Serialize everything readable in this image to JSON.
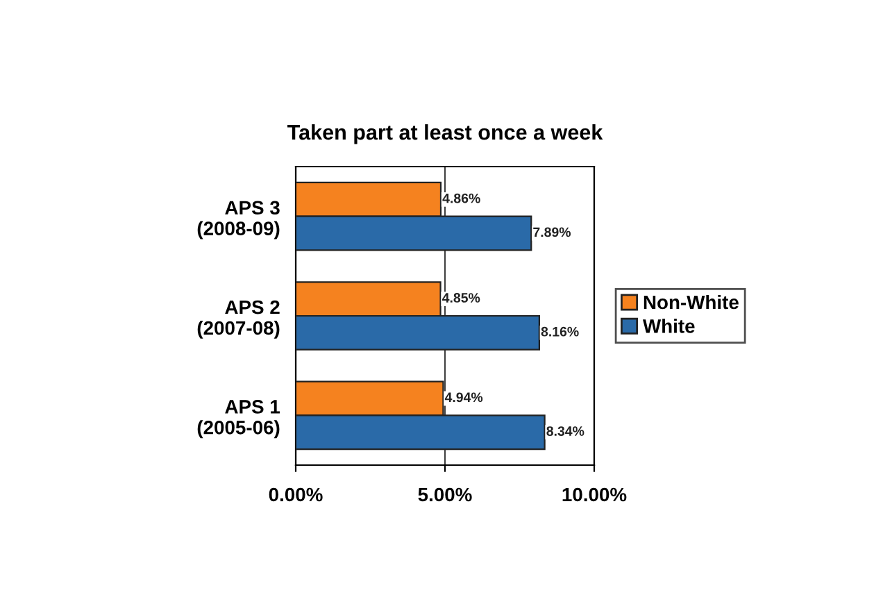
{
  "chart_data": {
    "type": "bar",
    "orientation": "horizontal",
    "title": "Taken part at least once a week",
    "categories": [
      "APS 3\n(2008-09)",
      "APS 2\n(2007-08)",
      "APS 1\n(2005-06)"
    ],
    "series": [
      {
        "name": "Non-White",
        "color": "#f5821f",
        "values": [
          4.86,
          4.85,
          4.94
        ],
        "value_labels": [
          "4.86%",
          "4.85%",
          "4.94%"
        ]
      },
      {
        "name": "White",
        "color": "#2a6aa8",
        "values": [
          7.89,
          8.16,
          8.34
        ],
        "value_labels": [
          "7.89%",
          "8.16%",
          "8.34%"
        ]
      }
    ],
    "xlim": [
      0,
      10
    ],
    "xticks": [
      {
        "value": 0,
        "label": "0.00%"
      },
      {
        "value": 5,
        "label": "5.00%"
      },
      {
        "value": 10,
        "label": "10.00%"
      }
    ],
    "grid": "x",
    "legend": "right"
  }
}
